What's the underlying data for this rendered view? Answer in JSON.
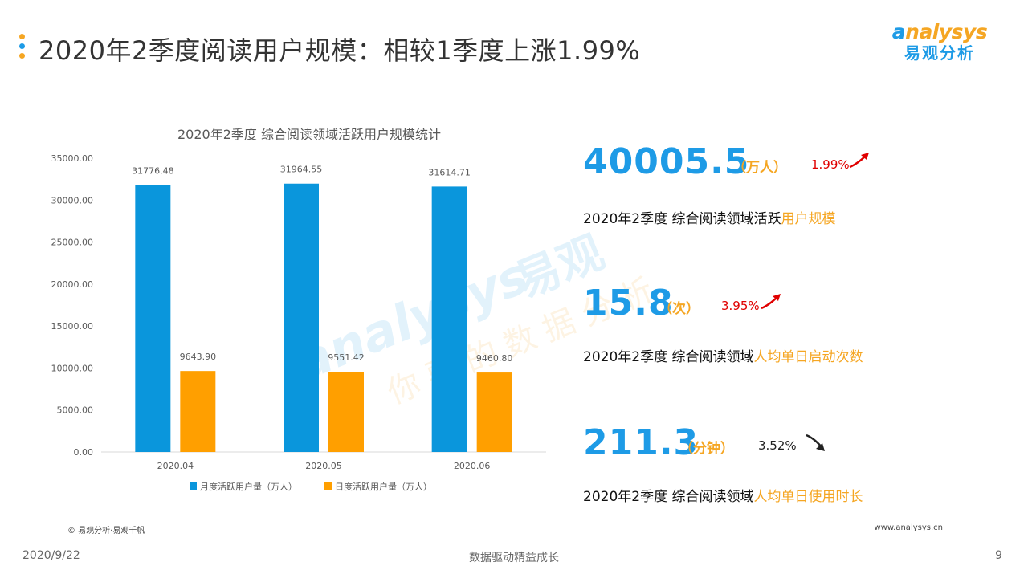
{
  "header": {
    "title": "2020年2季度阅读用户规模：相较1季度上涨1.99%",
    "brand_en": "nalysys",
    "brand_en_initial": "a",
    "brand_cn": "易观分析"
  },
  "chart_data": {
    "type": "bar",
    "title": "2020年2季度 综合阅读领域活跃用户规模统计",
    "categories": [
      "2020.04",
      "2020.05",
      "2020.06"
    ],
    "series": [
      {
        "name": "月度活跃用户量（万人）",
        "values": [
          31776.48,
          31964.55,
          31614.71
        ],
        "labels": [
          "31776.48",
          "31964.55",
          "31614.71"
        ],
        "color": "#0a96dc"
      },
      {
        "name": "日度活跃用户量（万人）",
        "values": [
          9643.9,
          9551.42,
          9460.8
        ],
        "labels": [
          "9643.90",
          "9551.42",
          "9460.80"
        ],
        "color": "#ff9f00"
      }
    ],
    "ylim": [
      0,
      35000
    ],
    "yticks": [
      "0.00",
      "5000.00",
      "10000.00",
      "15000.00",
      "20000.00",
      "25000.00",
      "30000.00",
      "35000.00"
    ],
    "ytick_values": [
      0,
      5000,
      10000,
      15000,
      20000,
      25000,
      30000,
      35000
    ],
    "legend_position": "bottom",
    "grid": false
  },
  "metrics": [
    {
      "value": "40005.5",
      "unit": "（万人）",
      "change": "1.99%",
      "direction": "up",
      "desc_plain": "2020年2季度 综合阅读领域活跃",
      "desc_highlight": "用户规模"
    },
    {
      "value": "15.8",
      "unit": "（次）",
      "change": "3.95%",
      "direction": "up",
      "desc_plain": "2020年2季度 综合阅读领域",
      "desc_highlight": "人均单日启动次数"
    },
    {
      "value": "211.3",
      "unit": "（分钟）",
      "change": "3.52%",
      "direction": "down",
      "desc_plain": "2020年2季度 综合阅读领域",
      "desc_highlight": "人均单日使用时长"
    }
  ],
  "watermark": {
    "en": "analysys",
    "cn": "易观",
    "sub": "你要的数据分析"
  },
  "footer": {
    "source": "© 易观分析·易观千帆",
    "website": "www.analysys.cn",
    "date": "2020/9/22",
    "slogan": "数据驱动精益成长",
    "page": "9"
  },
  "colors": {
    "accent_blue": "#1e9be6",
    "accent_orange": "#f5a623",
    "up_red": "#e00000"
  }
}
